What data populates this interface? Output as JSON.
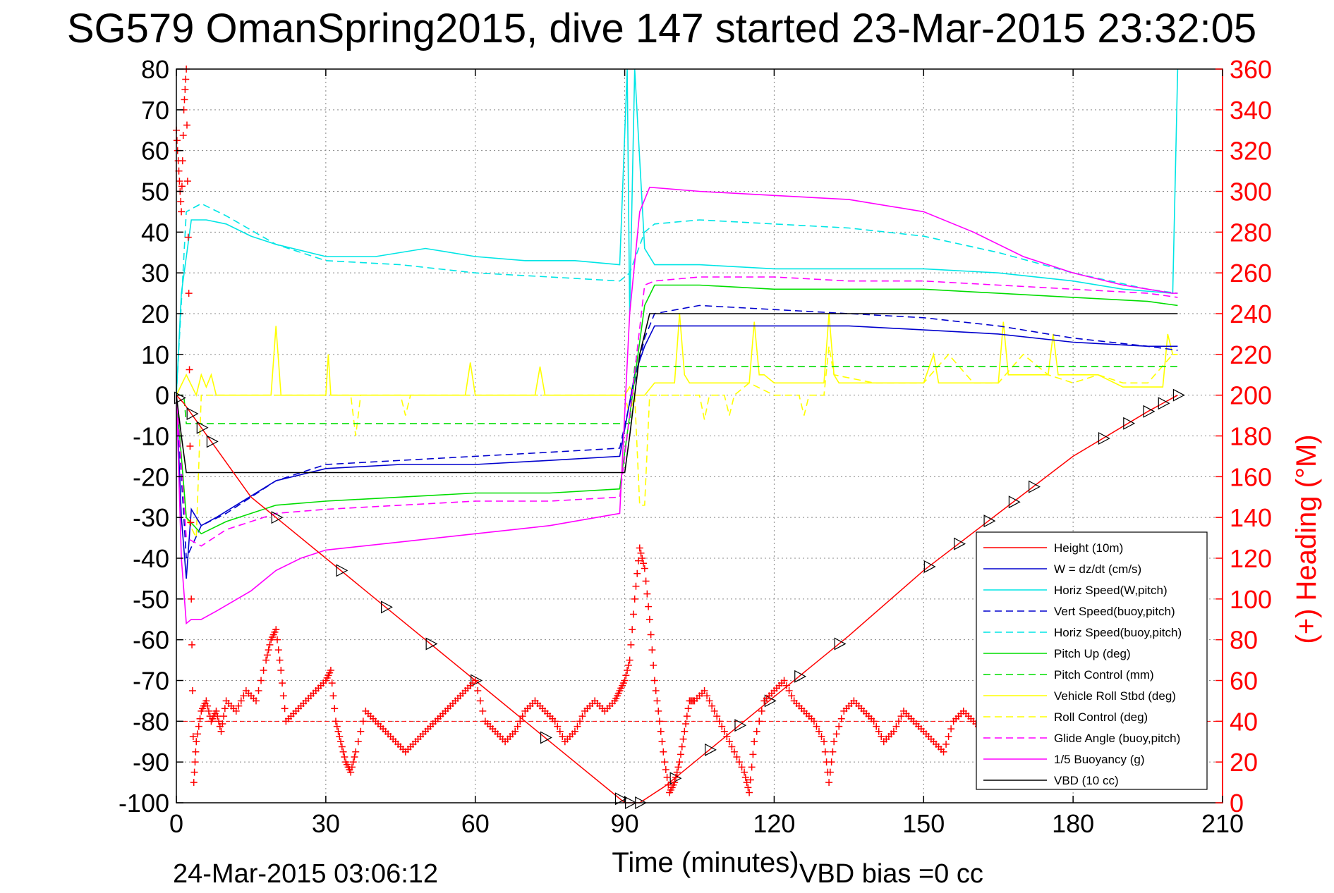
{
  "title": "SG579 OmanSpring2015, dive 147 started 23-Mar-2015 23:32:05",
  "footer": {
    "end_time": "24-Mar-2015 03:06:12",
    "vbd_bias": "VBD bias =0 cc"
  },
  "colors": {
    "height": "#ff0000",
    "w": "#0000cd",
    "horiz_speed": "#00e5e5",
    "pitch": "#00dd00",
    "roll": "#ffff00",
    "glide": "#ff00ff",
    "buoyancy": "#ff00ff",
    "vbd": "#000000",
    "heading": "#ff0000"
  },
  "chart_data": {
    "type": "line",
    "title": "SG579 OmanSpring2015, dive 147 started 23-Mar-2015 23:32:05",
    "xlabel": "Time (minutes)",
    "ylabel": "",
    "y2label": "(+) Heading (°M)",
    "xlim": [
      0,
      210
    ],
    "ylim": [
      -100,
      80
    ],
    "y2lim": [
      0,
      360
    ],
    "xticks": [
      "0",
      "30",
      "60",
      "90",
      "120",
      "150",
      "180",
      "210"
    ],
    "yticks": [
      "80",
      "70",
      "60",
      "50",
      "40",
      "30",
      "20",
      "10",
      "0",
      "-10",
      "-20",
      "-30",
      "-40",
      "-50",
      "-60",
      "-70",
      "-80",
      "-90",
      "-100"
    ],
    "y2ticks": [
      "360",
      "340",
      "320",
      "300",
      "280",
      "260",
      "240",
      "220",
      "200",
      "180",
      "160",
      "140",
      "120",
      "100",
      "80",
      "60",
      "40",
      "20",
      "0"
    ],
    "grid": true,
    "legend_position": "lower-right",
    "series": [
      {
        "name": "Height (10m)",
        "color": "#ff0000",
        "dash": false,
        "x": [
          0,
          1.5,
          15,
          30,
          45,
          60,
          75,
          90,
          93,
          98,
          105,
          120,
          135,
          150,
          165,
          180,
          195,
          201
        ],
        "y": [
          0,
          -2,
          -25,
          -40,
          -55,
          -70,
          -85,
          -100,
          -100,
          -96,
          -89,
          -74,
          -59,
          -43,
          -29,
          -15,
          -4,
          0
        ]
      },
      {
        "name": "W = dz/dt (cm/s)",
        "color": "#0000cd",
        "dash": false,
        "x": [
          0,
          1,
          2,
          3,
          5,
          8,
          12,
          20,
          30,
          45,
          60,
          75,
          89,
          90.5,
          92,
          94,
          96,
          105,
          120,
          135,
          150,
          165,
          180,
          195,
          201
        ],
        "y": [
          0,
          -30,
          -45,
          -28,
          -32,
          -30,
          -27,
          -21,
          -18,
          -17,
          -17,
          -16,
          -15,
          -5,
          5,
          12,
          17,
          17,
          17,
          17,
          16,
          15,
          13,
          12,
          12
        ]
      },
      {
        "name": "Horiz Speed(W,pitch)",
        "color": "#00e5e5",
        "dash": false,
        "x": [
          0,
          1,
          3,
          6,
          10,
          15,
          20,
          30,
          40,
          50,
          60,
          70,
          80,
          89,
          90.5,
          91,
          92,
          94,
          96,
          105,
          120,
          135,
          150,
          165,
          180,
          190,
          200,
          201
        ],
        "y": [
          0,
          25,
          43,
          43,
          42,
          39,
          37,
          34,
          34,
          36,
          34,
          33,
          33,
          32,
          80,
          20,
          80,
          36,
          32,
          32,
          31,
          31,
          31,
          30,
          28,
          26,
          25,
          80
        ]
      },
      {
        "name": "Vert Speed(buoy,pitch)",
        "color": "#0000cd",
        "dash": true,
        "x": [
          0,
          2,
          5,
          10,
          20,
          30,
          45,
          60,
          75,
          89,
          91,
          94,
          96,
          105,
          120,
          135,
          150,
          165,
          180,
          195,
          201
        ],
        "y": [
          0,
          -40,
          -32,
          -29,
          -21,
          -17,
          -16,
          -15,
          -14,
          -13,
          -2,
          14,
          20,
          22,
          21,
          20,
          19,
          17,
          14,
          12,
          11
        ]
      },
      {
        "name": "Horiz Speed(buoy,pitch)",
        "color": "#00e5e5",
        "dash": true,
        "x": [
          0,
          2,
          5,
          10,
          20,
          30,
          45,
          60,
          75,
          89,
          91,
          94,
          96,
          105,
          120,
          135,
          150,
          165,
          180,
          195,
          201
        ],
        "y": [
          0,
          45,
          47,
          44,
          37,
          33,
          32,
          30,
          29,
          28,
          30,
          40,
          42,
          43,
          42,
          41,
          39,
          35,
          30,
          26,
          25
        ]
      },
      {
        "name": "Pitch Up (deg)",
        "color": "#00dd00",
        "dash": false,
        "x": [
          0,
          2,
          5,
          10,
          20,
          30,
          45,
          60,
          75,
          89,
          91,
          94,
          96,
          105,
          120,
          135,
          150,
          165,
          180,
          195,
          201
        ],
        "y": [
          0,
          -30,
          -34,
          -31,
          -27,
          -26,
          -25,
          -24,
          -24,
          -23,
          -5,
          22,
          27,
          27,
          26,
          26,
          26,
          25,
          24,
          23,
          22
        ]
      },
      {
        "name": "Pitch Control (mm)",
        "color": "#00dd00",
        "dash": true,
        "x": [
          0,
          1.5,
          2,
          5,
          10,
          20,
          30,
          45,
          60,
          75,
          90,
          91,
          92,
          93,
          94,
          96,
          105,
          120,
          135,
          150,
          165,
          180,
          195,
          201
        ],
        "y": [
          0,
          0,
          -7,
          -7,
          -7,
          -7,
          -7,
          -7,
          -7,
          -7,
          -7,
          -7,
          7,
          7,
          7,
          7,
          7,
          7,
          7,
          7,
          7,
          7,
          7,
          7
        ]
      },
      {
        "name": "Vehicle Roll Stbd (deg)",
        "color": "#ffff00",
        "dash": false,
        "x": [
          0,
          2,
          4,
          5,
          6,
          7,
          8,
          9,
          10,
          15,
          19,
          20,
          21,
          22,
          30,
          30.5,
          31,
          32,
          35,
          36,
          37,
          40,
          50,
          58,
          59,
          60,
          61,
          70,
          72,
          73,
          74,
          80,
          89,
          90,
          91,
          92,
          93,
          94,
          96,
          100,
          101,
          102,
          103,
          104,
          110,
          115,
          116,
          117,
          118,
          120,
          130,
          131,
          132,
          133,
          134,
          150,
          152,
          153,
          154,
          160,
          165,
          166,
          167,
          168,
          175,
          176,
          177,
          178,
          185,
          190,
          195,
          198,
          199,
          200,
          201
        ],
        "y": [
          0,
          5,
          0,
          5,
          2,
          5,
          0,
          0,
          0,
          0,
          0,
          17,
          0,
          0,
          0,
          10,
          0,
          0,
          0,
          0,
          0,
          0,
          0,
          0,
          8,
          0,
          0,
          0,
          0,
          7,
          0,
          0,
          0,
          0,
          2,
          0,
          0,
          0,
          3,
          3,
          20,
          5,
          3,
          3,
          3,
          3,
          18,
          5,
          5,
          3,
          3,
          20,
          5,
          3,
          3,
          3,
          10,
          3,
          3,
          3,
          3,
          18,
          5,
          5,
          5,
          15,
          5,
          5,
          5,
          2,
          2,
          2,
          15,
          10,
          10
        ]
      },
      {
        "name": "Roll Control (deg)",
        "color": "#ffff00",
        "dash": true,
        "x": [
          0,
          2,
          4,
          5,
          10,
          15,
          20,
          30,
          35,
          36,
          37,
          45,
          46,
          47,
          60,
          75,
          90,
          91,
          92,
          93,
          94,
          95,
          96,
          97,
          98,
          100,
          105,
          106,
          107,
          110,
          111,
          112,
          115,
          120,
          125,
          126,
          127,
          130,
          131,
          132,
          140,
          150,
          155,
          160,
          165,
          170,
          175,
          180,
          185,
          190,
          195,
          200,
          201
        ],
        "y": [
          0,
          -30,
          -35,
          0,
          0,
          0,
          0,
          0,
          0,
          -10,
          0,
          0,
          -5,
          0,
          0,
          0,
          0,
          -5,
          0,
          -27,
          -27,
          0,
          0,
          0,
          0,
          0,
          0,
          -6,
          0,
          0,
          -5,
          0,
          3,
          0,
          0,
          -5,
          0,
          0,
          12,
          5,
          3,
          3,
          10,
          3,
          3,
          10,
          5,
          3,
          5,
          3,
          3,
          10,
          10
        ]
      },
      {
        "name": "Glide Angle (buoy,pitch)",
        "color": "#ff00ff",
        "dash": true,
        "x": [
          0,
          2,
          5,
          10,
          20,
          30,
          45,
          60,
          75,
          89,
          91,
          94,
          96,
          105,
          120,
          135,
          150,
          165,
          180,
          195,
          201
        ],
        "y": [
          0,
          -35,
          -37,
          -33,
          -29,
          -28,
          -27,
          -26,
          -26,
          -25,
          -5,
          27,
          28,
          29,
          29,
          28,
          28,
          27,
          26,
          25,
          24
        ]
      },
      {
        "name": "1/5 Buoyancy (g)",
        "color": "#ff00ff",
        "dash": false,
        "x": [
          0,
          1,
          2,
          3,
          5,
          8,
          15,
          20,
          25,
          30,
          45,
          60,
          75,
          89,
          91,
          93,
          95,
          105,
          120,
          135,
          150,
          160,
          170,
          180,
          190,
          195,
          200,
          201
        ],
        "y": [
          0,
          -40,
          -56,
          -55,
          -55,
          -53,
          -48,
          -43,
          -40,
          -38,
          -36,
          -34,
          -32,
          -29,
          20,
          45,
          51,
          50,
          49,
          48,
          45,
          40,
          34,
          30,
          27,
          26,
          25,
          25
        ]
      },
      {
        "name": "VBD (10 cc)",
        "color": "#000000",
        "dash": false,
        "x": [
          0,
          1,
          2,
          5,
          10,
          20,
          30,
          45,
          60,
          75,
          89,
          90,
          91,
          93,
          95,
          105,
          120,
          135,
          150,
          165,
          180,
          195,
          201
        ],
        "y": [
          0,
          -10,
          -19,
          -19,
          -19,
          -19,
          -19,
          -19,
          -19,
          -19,
          -19,
          -19,
          -10,
          10,
          20,
          20,
          20,
          20,
          20,
          20,
          20,
          20,
          20
        ]
      }
    ],
    "heading": {
      "name": "(+) Heading (°M)",
      "color": "#ff0000",
      "marker": "+",
      "x": [
        0,
        0.5,
        1,
        1.5,
        2,
        2.5,
        3,
        3.5,
        4,
        5,
        6,
        7,
        8,
        9,
        10,
        12,
        14,
        16,
        18,
        19,
        20,
        21,
        22,
        24,
        26,
        28,
        30,
        31,
        32,
        33,
        34,
        35,
        36,
        38,
        40,
        42,
        44,
        46,
        48,
        50,
        52,
        54,
        56,
        58,
        60,
        62,
        64,
        66,
        68,
        70,
        72,
        74,
        76,
        78,
        80,
        82,
        84,
        86,
        88,
        89,
        90,
        91,
        92,
        93,
        94,
        95,
        96,
        97,
        98,
        99,
        100,
        101,
        102,
        103,
        104,
        106,
        108,
        110,
        112,
        114,
        115,
        116,
        118,
        120,
        122,
        124,
        126,
        128,
        130,
        131,
        132,
        134,
        136,
        138,
        140,
        142,
        144,
        146,
        148,
        150,
        152,
        154,
        156,
        158,
        160,
        162,
        164,
        166,
        168,
        170,
        172,
        174,
        176,
        178,
        180,
        182,
        184,
        186,
        188,
        190,
        192,
        194,
        196,
        198,
        200,
        201
      ],
      "y": [
        330,
        310,
        290,
        340,
        360,
        250,
        100,
        10,
        30,
        45,
        50,
        40,
        45,
        35,
        50,
        45,
        55,
        50,
        70,
        80,
        85,
        65,
        40,
        45,
        50,
        55,
        60,
        65,
        40,
        30,
        20,
        15,
        25,
        45,
        40,
        35,
        30,
        25,
        30,
        35,
        40,
        45,
        50,
        55,
        60,
        40,
        35,
        30,
        35,
        45,
        50,
        45,
        40,
        30,
        35,
        45,
        50,
        45,
        50,
        55,
        60,
        70,
        100,
        125,
        115,
        90,
        60,
        40,
        20,
        5,
        10,
        20,
        35,
        50,
        50,
        55,
        45,
        35,
        25,
        15,
        5,
        30,
        50,
        55,
        60,
        50,
        45,
        40,
        30,
        10,
        30,
        45,
        50,
        45,
        40,
        30,
        35,
        45,
        40,
        35,
        30,
        25,
        40,
        45,
        40,
        35,
        20,
        15,
        10,
        15,
        20,
        25,
        30,
        20,
        15,
        10,
        15,
        20,
        30,
        25,
        20,
        15,
        10,
        25,
        10,
        30
      ]
    }
  }
}
